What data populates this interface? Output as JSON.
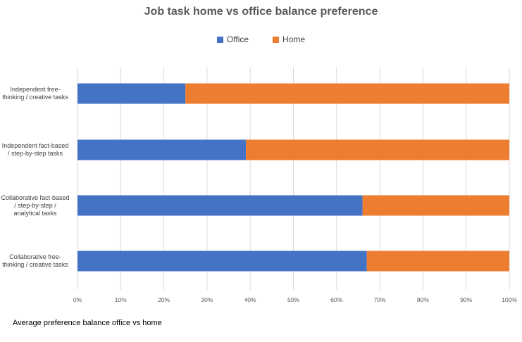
{
  "colors": {
    "office": "#4472C4",
    "home": "#ED7D31",
    "grid": "#d9d9d9"
  },
  "footnote": "Average preference balance office vs home",
  "chart_data": {
    "type": "bar",
    "orientation": "horizontal",
    "stacked": true,
    "title": "Job task home vs office balance preference",
    "categories": [
      "Independent free-thinking / creative tasks",
      "Independent fact-based / step-by-step tasks",
      "Collaborative fact-based / step-by-step / analytical tasks",
      "Collaborative free-thinking / creative tasks"
    ],
    "category_lines": [
      [
        "Independent free-",
        "thinking / creative tasks"
      ],
      [
        "Independent fact-based",
        "/ step-by-step tasks"
      ],
      [
        "Collaborative fact-based",
        "/ step-by-step /",
        "analytical tasks"
      ],
      [
        "Collaborative free-",
        "thinking / creative tasks"
      ]
    ],
    "series": [
      {
        "name": "Office",
        "values": [
          25,
          39,
          66,
          67
        ]
      },
      {
        "name": "Home",
        "values": [
          75,
          61,
          34,
          33
        ]
      }
    ],
    "xlim": [
      0,
      100
    ],
    "xticks": [
      "0%",
      "10%",
      "20%",
      "30%",
      "40%",
      "50%",
      "60%",
      "70%",
      "80%",
      "90%",
      "100%"
    ],
    "grid": true,
    "legend": "top"
  }
}
